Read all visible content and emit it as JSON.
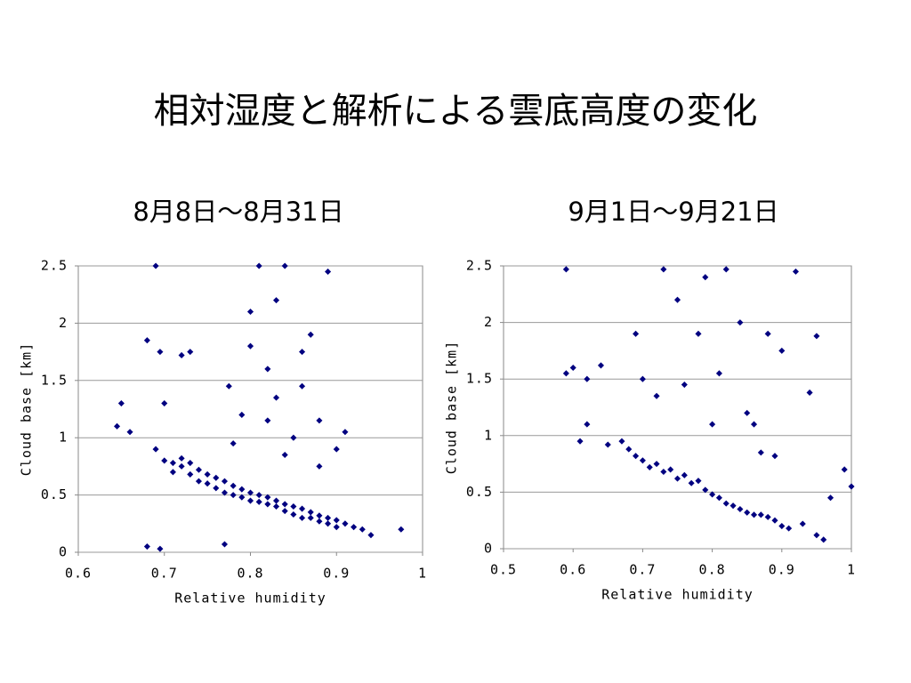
{
  "title": "相対湿度と解析による雲底高度の変化",
  "chart_data": [
    {
      "type": "scatter",
      "title": "8月8日～8月31日",
      "x_label": "Relative humidity",
      "y_label": "Cloud base [km]",
      "color": "#000080",
      "grid": true,
      "xlim": [
        0.6,
        1
      ],
      "xticks": [
        0.6,
        0.7,
        0.8,
        0.9,
        1
      ],
      "ylim": [
        0,
        2.5
      ],
      "yticks": [
        0,
        0.5,
        1,
        1.5,
        2,
        2.5
      ],
      "x": [
        0.645,
        0.65,
        0.66,
        0.68,
        0.69,
        0.695,
        0.7,
        0.7,
        0.71,
        0.71,
        0.72,
        0.72,
        0.73,
        0.73,
        0.74,
        0.74,
        0.75,
        0.75,
        0.76,
        0.76,
        0.77,
        0.77,
        0.78,
        0.78,
        0.79,
        0.79,
        0.8,
        0.8,
        0.81,
        0.81,
        0.82,
        0.82,
        0.83,
        0.83,
        0.84,
        0.84,
        0.85,
        0.85,
        0.86,
        0.86,
        0.87,
        0.87,
        0.88,
        0.88,
        0.89,
        0.89,
        0.9,
        0.9,
        0.91,
        0.92,
        0.93,
        0.94,
        0.975,
        0.69,
        0.72,
        0.73,
        0.68,
        0.695,
        0.77,
        0.775,
        0.79,
        0.8,
        0.81,
        0.82,
        0.83,
        0.84,
        0.85,
        0.86,
        0.87,
        0.88,
        0.89,
        0.9,
        0.8,
        0.82,
        0.84,
        0.86,
        0.88,
        0.91,
        0.78,
        0.83
      ],
      "values": [
        1.1,
        1.3,
        1.05,
        1.85,
        0.9,
        1.75,
        1.3,
        0.8,
        0.78,
        0.7,
        0.82,
        0.75,
        0.78,
        0.68,
        0.72,
        0.62,
        0.68,
        0.6,
        0.65,
        0.56,
        0.62,
        0.52,
        0.58,
        0.5,
        0.55,
        0.48,
        0.52,
        0.45,
        0.5,
        0.44,
        0.48,
        0.42,
        0.45,
        0.4,
        0.42,
        0.36,
        0.4,
        0.33,
        0.38,
        0.3,
        0.35,
        0.3,
        0.32,
        0.27,
        0.3,
        0.25,
        0.28,
        0.22,
        0.25,
        0.22,
        0.2,
        0.15,
        0.2,
        2.5,
        1.72,
        1.75,
        0.05,
        0.03,
        0.07,
        1.45,
        1.2,
        2.1,
        2.5,
        1.6,
        2.2,
        2.5,
        1.0,
        1.75,
        1.9,
        1.15,
        2.45,
        0.9,
        1.8,
        1.15,
        0.85,
        1.45,
        0.75,
        1.05,
        0.95,
        1.35
      ]
    },
    {
      "type": "scatter",
      "title": "9月1日～9月21日",
      "x_label": "Relative humidity",
      "y_label": "Cloud base [km]",
      "color": "#000080",
      "grid": true,
      "xlim": [
        0.5,
        1
      ],
      "xticks": [
        0.5,
        0.6,
        0.7,
        0.8,
        0.9,
        1
      ],
      "ylim": [
        0,
        2.5
      ],
      "yticks": [
        0,
        0.5,
        1,
        1.5,
        2,
        2.5
      ],
      "x": [
        0.59,
        0.59,
        0.6,
        0.62,
        0.64,
        0.61,
        0.62,
        0.65,
        0.67,
        0.68,
        0.69,
        0.7,
        0.71,
        0.72,
        0.73,
        0.74,
        0.75,
        0.76,
        0.77,
        0.78,
        0.79,
        0.8,
        0.81,
        0.82,
        0.83,
        0.84,
        0.85,
        0.86,
        0.87,
        0.88,
        0.89,
        0.9,
        0.91,
        0.93,
        0.95,
        0.96,
        0.97,
        0.99,
        1.0,
        0.69,
        0.7,
        0.72,
        0.73,
        0.75,
        0.76,
        0.78,
        0.79,
        0.8,
        0.81,
        0.82,
        0.84,
        0.85,
        0.86,
        0.87,
        0.88,
        0.89,
        0.9,
        0.92,
        0.94,
        0.95
      ],
      "values": [
        2.47,
        1.55,
        1.6,
        1.5,
        1.62,
        0.95,
        1.1,
        0.92,
        0.95,
        0.88,
        0.82,
        0.78,
        0.72,
        0.75,
        0.68,
        0.7,
        0.62,
        0.65,
        0.58,
        0.6,
        0.52,
        0.48,
        0.45,
        0.4,
        0.38,
        0.35,
        0.32,
        0.3,
        0.3,
        0.28,
        0.25,
        0.2,
        0.18,
        0.22,
        0.12,
        0.08,
        0.45,
        0.7,
        0.55,
        1.9,
        1.5,
        1.35,
        2.47,
        2.2,
        1.45,
        1.9,
        2.4,
        1.1,
        1.55,
        2.47,
        2.0,
        1.2,
        1.1,
        0.85,
        1.9,
        0.82,
        1.75,
        2.45,
        1.38,
        1.88
      ]
    }
  ]
}
